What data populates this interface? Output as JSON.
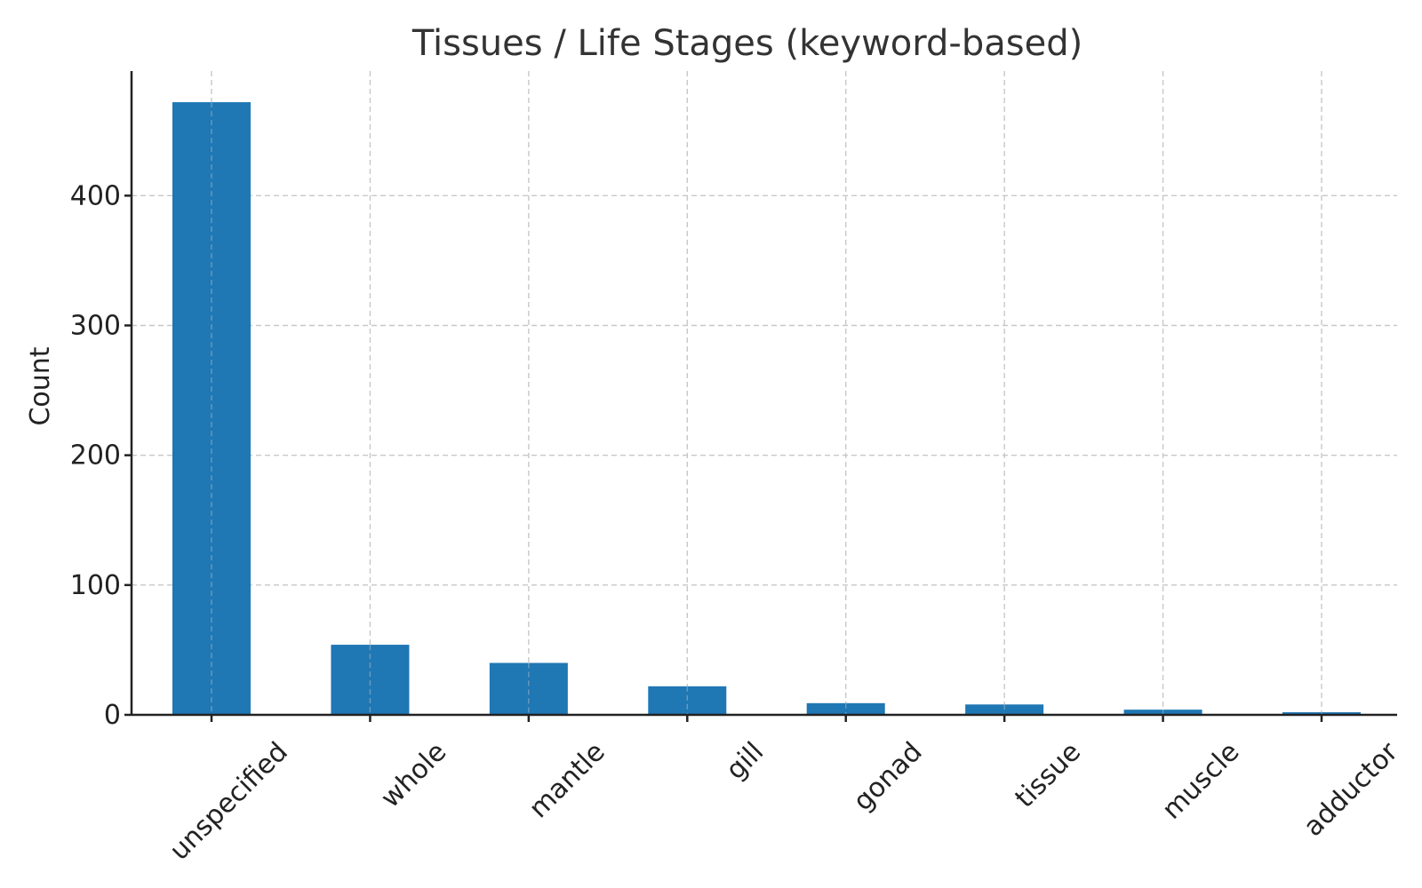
{
  "chart_data": {
    "type": "bar",
    "title": "Tissues / Life Stages (keyword-based)",
    "xlabel": "",
    "ylabel": "Count",
    "categories": [
      "unspecified",
      "whole",
      "mantle",
      "gill",
      "gonad",
      "tissue",
      "muscle",
      "adductor"
    ],
    "values": [
      472,
      54,
      40,
      22,
      9,
      8,
      4,
      2
    ],
    "ylim": [
      0,
      496
    ],
    "yticks": [
      0,
      100,
      200,
      300,
      400
    ],
    "grid": true,
    "legend": "none",
    "bar_color": "#1f77b4"
  }
}
